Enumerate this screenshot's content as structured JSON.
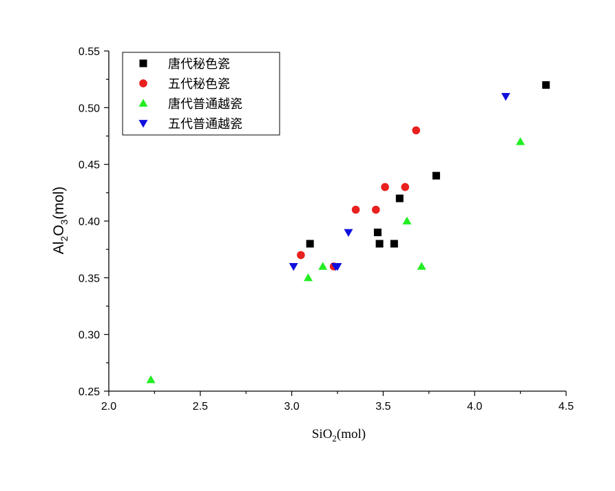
{
  "chart_data": {
    "type": "scatter",
    "xlabel": {
      "base": "SiO",
      "sub": "2",
      "unit": "(mol)"
    },
    "ylabel": {
      "a": "Al",
      "sub1": "2",
      "b": "O",
      "sub2": "3",
      "unit": "(mol)"
    },
    "xlim": [
      2.0,
      4.5
    ],
    "ylim": [
      0.25,
      0.55
    ],
    "xticks": [
      "2.0",
      "2.5",
      "3.0",
      "3.5",
      "4.0",
      "4.5"
    ],
    "yticks": [
      "0.25",
      "0.30",
      "0.35",
      "0.40",
      "0.45",
      "0.50",
      "0.55"
    ],
    "grid": false,
    "legend_position": "top-left",
    "series": [
      {
        "name": "唐代秘色瓷",
        "marker": "square",
        "color": "#000000",
        "points": [
          [
            3.1,
            0.38
          ],
          [
            3.47,
            0.39
          ],
          [
            3.48,
            0.38
          ],
          [
            3.56,
            0.38
          ],
          [
            3.59,
            0.42
          ],
          [
            3.79,
            0.44
          ],
          [
            4.39,
            0.52
          ]
        ]
      },
      {
        "name": "五代秘色瓷",
        "marker": "circle",
        "color": "#e8201e",
        "points": [
          [
            3.05,
            0.37
          ],
          [
            3.23,
            0.36
          ],
          [
            3.35,
            0.41
          ],
          [
            3.46,
            0.41
          ],
          [
            3.51,
            0.43
          ],
          [
            3.62,
            0.43
          ],
          [
            3.68,
            0.48
          ]
        ]
      },
      {
        "name": "唐代普通越瓷",
        "marker": "triangle-up",
        "color": "#22ee22",
        "points": [
          [
            2.23,
            0.26
          ],
          [
            3.09,
            0.35
          ],
          [
            3.17,
            0.36
          ],
          [
            3.63,
            0.4
          ],
          [
            3.71,
            0.36
          ],
          [
            4.25,
            0.47
          ]
        ]
      },
      {
        "name": "五代普通越瓷",
        "marker": "triangle-down",
        "color": "#1010dd",
        "points": [
          [
            3.01,
            0.36
          ],
          [
            3.24,
            0.36
          ],
          [
            3.25,
            0.36
          ],
          [
            3.31,
            0.39
          ],
          [
            4.17,
            0.51
          ]
        ]
      }
    ]
  }
}
